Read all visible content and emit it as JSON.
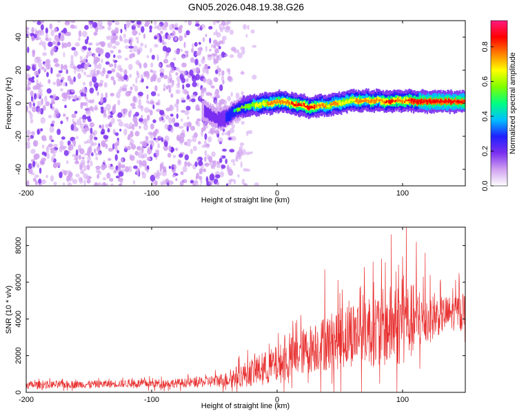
{
  "title": "GN05.2026.048.19.38.G26",
  "chart_data": [
    {
      "type": "heatmap",
      "name": "spectrogram",
      "xlabel": "Height of straight line (km)",
      "ylabel": "Frequency (Hz)",
      "xlim": [
        -200,
        150
      ],
      "ylim": [
        -50,
        50
      ],
      "xticks": [
        -200,
        -100,
        0,
        100
      ],
      "yticks": [
        -40,
        -20,
        0,
        20,
        40
      ],
      "colorbar": {
        "label": "Normalized spectral amplitude",
        "range": [
          0,
          0.95
        ],
        "ticks": [
          0.0,
          0.2,
          0.4,
          0.6,
          0.8
        ],
        "colors": [
          "#ffffff",
          "#d0a0f0",
          "#7b2ff0",
          "#2020ff",
          "#00c0ff",
          "#00ff80",
          "#80ff00",
          "#ffff00",
          "#ff8000",
          "#ff0000",
          "#ff1a80"
        ]
      },
      "noise_region_end_km": -35,
      "ridge": {
        "x": [
          -60,
          -50,
          -45,
          -40,
          -35,
          -30,
          -25,
          -20,
          -15,
          -10,
          -5,
          0,
          5,
          10,
          15,
          20,
          25,
          30,
          35,
          40,
          45,
          50,
          55,
          60,
          65,
          70,
          75,
          80,
          85,
          90,
          95,
          100,
          105,
          110,
          115,
          120,
          130,
          140,
          150
        ],
        "y": [
          -4,
          -9,
          -10,
          -8,
          -5,
          -3,
          -2,
          -1,
          -1,
          0,
          0,
          1,
          1,
          0,
          -1,
          -1,
          -3,
          -2,
          -1,
          -2,
          0,
          0,
          1,
          2,
          1,
          2,
          1,
          2,
          1,
          1,
          2,
          1,
          2,
          1,
          1,
          1,
          1,
          1,
          1
        ],
        "amplitude": [
          0.25,
          0.35,
          0.4,
          0.45,
          0.5,
          0.55,
          0.6,
          0.6,
          0.65,
          0.7,
          0.75,
          0.8,
          0.75,
          0.8,
          0.85,
          0.8,
          0.85,
          0.8,
          0.75,
          0.7,
          0.75,
          0.7,
          0.65,
          0.7,
          0.8,
          0.75,
          0.8,
          0.75,
          0.8,
          0.85,
          0.8,
          0.8,
          0.85,
          0.85,
          0.9,
          0.9,
          0.9,
          0.9,
          0.9
        ]
      }
    },
    {
      "type": "line",
      "name": "snr",
      "xlabel": "Height of straight line (km)",
      "ylabel": "SNR (10 * v/v)",
      "xlim": [
        -200,
        150
      ],
      "ylim": [
        0,
        9000
      ],
      "xticks": [
        -200,
        -100,
        0,
        100
      ],
      "yticks": [
        0,
        2000,
        4000,
        6000,
        8000
      ],
      "color": "#e83030",
      "series": [
        {
          "name": "SNR",
          "x": [
            -200,
            -180,
            -160,
            -140,
            -120,
            -100,
            -80,
            -60,
            -40,
            -30,
            -20,
            -10,
            0,
            10,
            20,
            30,
            40,
            50,
            60,
            70,
            80,
            90,
            100,
            110,
            120,
            130,
            140,
            150
          ],
          "baseline": [
            400,
            420,
            430,
            450,
            480,
            480,
            500,
            550,
            700,
            900,
            1100,
            1300,
            1500,
            1800,
            2200,
            2500,
            2700,
            3000,
            3200,
            3500,
            3400,
            3600,
            3800,
            3900,
            4000,
            4200,
            4300,
            4500
          ],
          "spread": [
            300,
            300,
            300,
            300,
            300,
            350,
            350,
            400,
            600,
            900,
            1100,
            1300,
            1500,
            1700,
            1800,
            2000,
            2200,
            2500,
            2600,
            2800,
            3000,
            3200,
            3400,
            2800,
            2000,
            1500,
            1400,
            1400
          ],
          "peaks": [
            {
              "x": 38,
              "y": 6700
            },
            {
              "x": 52,
              "y": 5600
            },
            {
              "x": 66,
              "y": 5700
            },
            {
              "x": 77,
              "y": 6000
            },
            {
              "x": 91,
              "y": 8600
            },
            {
              "x": 100,
              "y": 7400
            },
            {
              "x": 103,
              "y": 9000
            },
            {
              "x": 111,
              "y": 8200
            },
            {
              "x": 118,
              "y": 7600
            },
            {
              "x": 145,
              "y": 6500
            }
          ]
        }
      ]
    }
  ]
}
